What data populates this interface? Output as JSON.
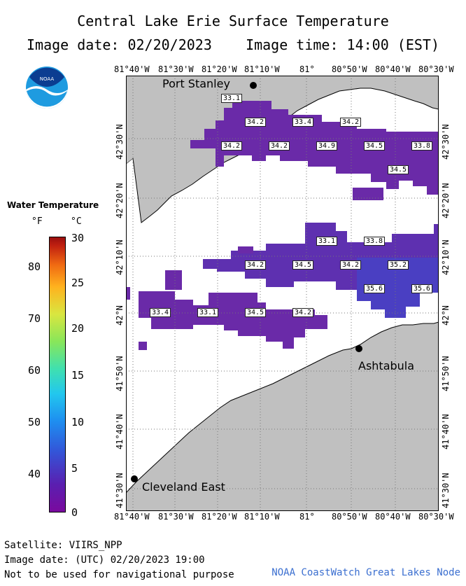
{
  "title": "Central Lake Erie Surface Temperature",
  "subtitle_date": "Image date: 02/20/2023",
  "subtitle_time": "Image time: 14:00 (EST)",
  "logo_text": "NOAA",
  "lon_ticks": [
    "81°40'W",
    "81°30'W",
    "81°20'W",
    "81°10'W",
    "81°",
    "80°50'W",
    "80°40'W",
    "80°30'W"
  ],
  "lat_ticks": [
    "42°30'N",
    "42°20'N",
    "42°10'N",
    "42°N",
    "41°50'N",
    "41°40'N",
    "41°30'N"
  ],
  "legend": {
    "title": "Water Temperature",
    "unit_f": "°F",
    "unit_c": "°C",
    "f_ticks": [
      "80",
      "70",
      "60",
      "50",
      "40"
    ],
    "c_ticks": [
      "30",
      "25",
      "20",
      "15",
      "10",
      "5",
      "0"
    ]
  },
  "cities": {
    "port_stanley": "Port Stanley",
    "ashtabula": "Ashtabula",
    "cleveland": "Cleveland East"
  },
  "temp_labels": [
    "33.1",
    "34.2",
    "33.4",
    "34.2",
    "34.2",
    "34.2",
    "34.9",
    "34.5",
    "33.8",
    "34.5",
    "33.1",
    "33.8",
    "34.2",
    "34.5",
    "34.2",
    "35.2",
    "35.6",
    "35.6",
    "33.4",
    "33.1",
    "34.5",
    "34.2"
  ],
  "footer": {
    "satellite": "Satellite: VIIRS_NPP",
    "utc": "Image date: (UTC) 02/20/2023  19:00",
    "disclaimer": "Not to be used for navigational purpose",
    "credit": "NOAA CoastWatch Great Lakes Node"
  },
  "colors": {
    "land": "#c0c0c0",
    "water_cold": "#6a2aa8",
    "water_warm": "#4a3fc2"
  }
}
